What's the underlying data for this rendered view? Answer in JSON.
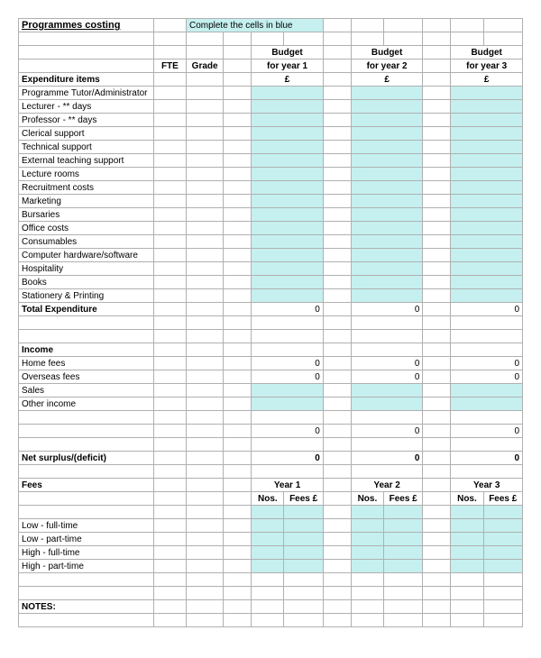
{
  "colors": {
    "highlight": "#c5f0ef",
    "border": "#b0b0b0",
    "background": "#ffffff",
    "text": "#000000"
  },
  "typography": {
    "font_family": "Arial",
    "base_size": 10,
    "title_size": 11
  },
  "title": "Programmes costing",
  "instruction": "Complete the cells in blue",
  "headers": {
    "fte": "FTE",
    "grade": "Grade",
    "budget": "Budget",
    "year1": "for year 1",
    "year2": "for year 2",
    "year3": "for year 3",
    "pound": "£"
  },
  "sections": {
    "expenditure": "Expenditure items",
    "total_exp": "Total Expenditure",
    "income": "Income",
    "net": "Net surplus/(deficit)",
    "fees": "Fees",
    "notes": "NOTES:"
  },
  "expenditure_items": [
    "Programme Tutor/Administrator",
    "Lecturer - ** days",
    "Professor - ** days",
    "Clerical support",
    "Technical support",
    "External teaching support",
    "Lecture rooms",
    "Recruitment costs",
    "Marketing",
    "Bursaries",
    "Office costs",
    "Consumables",
    "Computer hardware/software",
    "Hospitality",
    "Books",
    "Stationery & Printing"
  ],
  "income_items": [
    "Home fees",
    "Overseas fees",
    "Sales",
    "Other income"
  ],
  "fees_headers": {
    "y1": "Year 1",
    "y2": "Year 2",
    "y3": "Year 3",
    "nos": "Nos.",
    "fees": "Fees £"
  },
  "fee_rows": [
    "Low - full-time",
    "Low - part-time",
    "High - full-time",
    "High - part-time"
  ],
  "zero": "0"
}
